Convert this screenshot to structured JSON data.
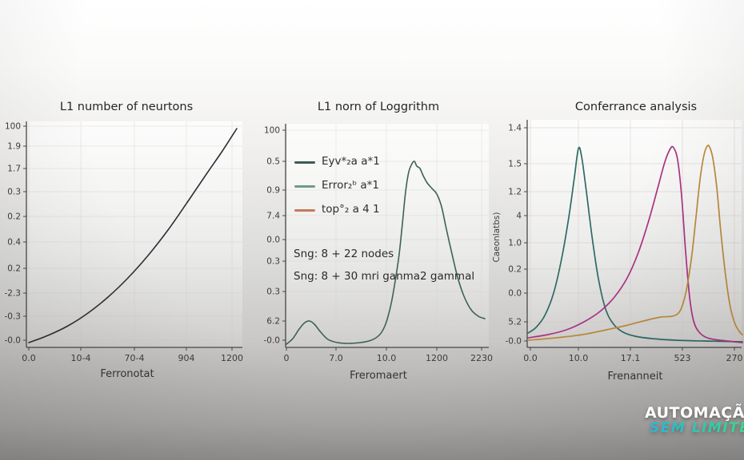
{
  "watermark": {
    "line1": "AUTOMAÇÃO",
    "line2": "SEM LIMITE",
    "line2_gradient": [
      "#2ab5d6",
      "#39dd85"
    ]
  },
  "chart_data": [
    {
      "type": "line",
      "title": "L1 number of neurtons",
      "xlabel": "Ferronotat",
      "ylabel": "",
      "legend_position": "none",
      "grid": true,
      "grid_color": "rgba(200,196,190,0.30)",
      "axis": {
        "x0": 33,
        "x1": 303,
        "ytop": 152,
        "ybase": 435
      },
      "yticks": [
        {
          "label": "100",
          "y": 158
        },
        {
          "label": "1.9",
          "y": 183
        },
        {
          "label": "1.7",
          "y": 211
        },
        {
          "label": "0.3",
          "y": 240
        },
        {
          "label": "0.2",
          "y": 271
        },
        {
          "label": "0.4",
          "y": 303
        },
        {
          "label": "0.2",
          "y": 336
        },
        {
          "label": "-2.3",
          "y": 367
        },
        {
          "label": "-0.3",
          "y": 396
        },
        {
          "label": "-0.0",
          "y": 426
        }
      ],
      "xticks": [
        {
          "label": "0.0",
          "x": 36
        },
        {
          "label": "10-4",
          "x": 101
        },
        {
          "label": "70-4",
          "x": 168
        },
        {
          "label": "904",
          "x": 233
        },
        {
          "label": "1200",
          "x": 290
        }
      ],
      "series": [
        {
          "name": "curve",
          "color": "#312d36",
          "width": 1.6,
          "points": [
            [
              36,
              429
            ],
            [
              60,
              420
            ],
            [
              85,
              408
            ],
            [
              110,
              392
            ],
            [
              135,
              372
            ],
            [
              160,
              348
            ],
            [
              185,
              320
            ],
            [
              210,
              288
            ],
            [
              235,
              252
            ],
            [
              258,
              218
            ],
            [
              278,
              189
            ],
            [
              296,
              161
            ]
          ]
        }
      ]
    },
    {
      "type": "line",
      "title": "L1 norn of Loggrithm",
      "xlabel": "Freromaert",
      "ylabel": "",
      "legend_position": "upper-left",
      "grid": true,
      "grid_color": "rgba(205,205,198,0.35)",
      "axis": {
        "x0": 357,
        "x1": 611,
        "ytop": 155,
        "ybase": 435
      },
      "yticks": [
        {
          "label": "100",
          "y": 163
        },
        {
          "label": "0.5",
          "y": 202
        },
        {
          "label": "0.9",
          "y": 238
        },
        {
          "label": "7.4",
          "y": 270
        },
        {
          "label": "0.0",
          "y": 300
        },
        {
          "label": "0.3",
          "y": 327
        },
        {
          "label": "0.3",
          "y": 365
        },
        {
          "label": "6.2",
          "y": 402
        },
        {
          "label": "-0.0",
          "y": 426
        }
      ],
      "xticks": [
        {
          "label": "0",
          "x": 358
        },
        {
          "label": "7.0",
          "x": 420
        },
        {
          "label": "10.0",
          "x": 483
        },
        {
          "label": "1200",
          "x": 546
        },
        {
          "label": "2230",
          "x": 602
        }
      ],
      "legend": [
        {
          "label": "Eyv*₂a a*1",
          "color": "#3d5c55"
        },
        {
          "label": "Error₂ᵇ a*1",
          "color": "#6f9a8d"
        },
        {
          "label": "top°₂ a 4 1",
          "color": "#c37a5c"
        }
      ],
      "annotations": [
        {
          "text": "Sng: 8 + 22 nodes",
          "x": 367,
          "y": 310
        },
        {
          "text": "Sng: 8 + 30 mri ganma2 gammal",
          "x": 367,
          "y": 338
        }
      ],
      "series": [
        {
          "name": "error-curve",
          "color": "#3d6258",
          "width": 1.6,
          "points": [
            [
              358,
              431
            ],
            [
              366,
              424
            ],
            [
              374,
              412
            ],
            [
              381,
              404
            ],
            [
              387,
              402
            ],
            [
              393,
              406
            ],
            [
              401,
              416
            ],
            [
              410,
              425
            ],
            [
              422,
              429
            ],
            [
              436,
              430
            ],
            [
              450,
              429
            ],
            [
              461,
              427
            ],
            [
              470,
              423
            ],
            [
              477,
              416
            ],
            [
              483,
              403
            ],
            [
              489,
              380
            ],
            [
              494,
              352
            ],
            [
              499,
              318
            ],
            [
              503,
              280
            ],
            [
              507,
              240
            ],
            [
              511,
              215
            ],
            [
              515,
              205
            ],
            [
              518,
              202
            ],
            [
              521,
              208
            ],
            [
              525,
              211
            ],
            [
              529,
              220
            ],
            [
              534,
              229
            ],
            [
              540,
              236
            ],
            [
              546,
              243
            ],
            [
              552,
              259
            ],
            [
              558,
              287
            ],
            [
              565,
              318
            ],
            [
              572,
              347
            ],
            [
              580,
              371
            ],
            [
              589,
              388
            ],
            [
              598,
              396
            ],
            [
              606,
              399
            ]
          ]
        }
      ]
    },
    {
      "type": "line",
      "title": "Conferrance analysis",
      "xlabel": "Frenanneit",
      "ylabel": "Caeonlatbs)",
      "legend_position": "none",
      "grid": true,
      "grid_color": "rgba(214,196,194,0.45)",
      "axis": {
        "x0": 659,
        "x1": 927,
        "ytop": 150,
        "ybase": 435
      },
      "yticks": [
        {
          "label": "1.4",
          "y": 160
        },
        {
          "label": "1.5",
          "y": 205
        },
        {
          "label": "1.2",
          "y": 240
        },
        {
          "label": "4",
          "y": 270
        },
        {
          "label": "1.0",
          "y": 304
        },
        {
          "label": "0.2",
          "y": 337
        },
        {
          "label": "0.0",
          "y": 367
        },
        {
          "label": "5.2",
          "y": 403
        },
        {
          "label": "-0.0",
          "y": 427
        }
      ],
      "xticks": [
        {
          "label": "0.0",
          "x": 663
        },
        {
          "label": "10.0",
          "x": 723
        },
        {
          "label": "17.1",
          "x": 788
        },
        {
          "label": "523",
          "x": 853
        },
        {
          "label": "270",
          "x": 918
        }
      ],
      "series": [
        {
          "name": "teal-bell",
          "color": "#2e6a64",
          "width": 1.7,
          "points": [
            [
              660,
              417
            ],
            [
              670,
              410
            ],
            [
              681,
              395
            ],
            [
              692,
              367
            ],
            [
              702,
              324
            ],
            [
              711,
              272
            ],
            [
              718,
              222
            ],
            [
              723,
              186
            ],
            [
              727,
              196
            ],
            [
              733,
              240
            ],
            [
              740,
              296
            ],
            [
              748,
              349
            ],
            [
              757,
              387
            ],
            [
              767,
              406
            ],
            [
              779,
              416
            ],
            [
              794,
              421
            ],
            [
              815,
              424
            ],
            [
              845,
              426
            ],
            [
              880,
              427
            ],
            [
              928,
              428
            ]
          ]
        },
        {
          "name": "magenta-peak",
          "color": "#aa3384",
          "width": 1.7,
          "points": [
            [
              660,
              423
            ],
            [
              685,
              419
            ],
            [
              708,
              413
            ],
            [
              730,
              403
            ],
            [
              750,
              390
            ],
            [
              768,
              372
            ],
            [
              784,
              348
            ],
            [
              798,
              316
            ],
            [
              811,
              276
            ],
            [
              822,
              236
            ],
            [
              831,
              203
            ],
            [
              838,
              186
            ],
            [
              842,
              185
            ],
            [
              847,
              200
            ],
            [
              852,
              245
            ],
            [
              857,
              315
            ],
            [
              862,
              372
            ],
            [
              867,
              402
            ],
            [
              874,
              416
            ],
            [
              884,
              423
            ],
            [
              900,
              426
            ],
            [
              928,
              429
            ]
          ]
        },
        {
          "name": "orange-peak",
          "color": "#bd8a3d",
          "width": 1.7,
          "points": [
            [
              660,
              426
            ],
            [
              695,
              423
            ],
            [
              728,
              419
            ],
            [
              758,
              413
            ],
            [
              785,
              407
            ],
            [
              808,
              401
            ],
            [
              826,
              397
            ],
            [
              840,
              396
            ],
            [
              849,
              391
            ],
            [
              855,
              376
            ],
            [
              860,
              352
            ],
            [
              865,
              318
            ],
            [
              870,
              272
            ],
            [
              875,
              225
            ],
            [
              880,
              194
            ],
            [
              884,
              183
            ],
            [
              887,
              184
            ],
            [
              891,
              198
            ],
            [
              896,
              235
            ],
            [
              901,
              290
            ],
            [
              907,
              345
            ],
            [
              913,
              385
            ],
            [
              919,
              406
            ],
            [
              925,
              416
            ],
            [
              928,
              419
            ]
          ]
        }
      ]
    }
  ]
}
